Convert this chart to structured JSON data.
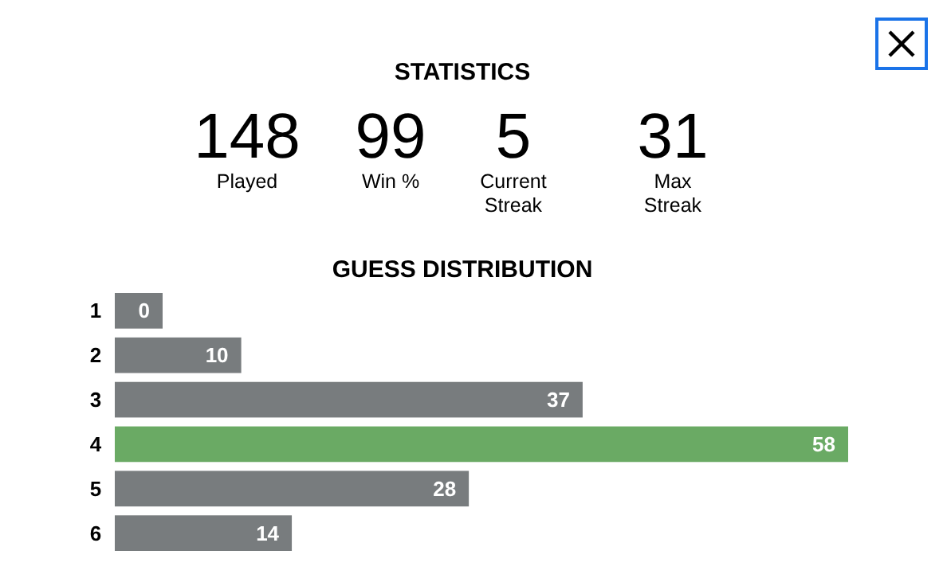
{
  "chart_data": [
    {
      "type": "other",
      "title": "STATISTICS",
      "categories": [
        "Played",
        "Win %",
        "Current Streak",
        "Max Streak"
      ],
      "values": [
        148,
        99,
        5,
        31
      ],
      "data_labels": true
    },
    {
      "type": "bar",
      "title": "GUESS DISTRIBUTION",
      "orientation": "horizontal",
      "categories": [
        "1",
        "2",
        "3",
        "4",
        "5",
        "6"
      ],
      "values": [
        0,
        10,
        37,
        58,
        28,
        14
      ],
      "colors": [
        "#787c7e",
        "#787c7e",
        "#787c7e",
        "#6aaa64",
        "#787c7e",
        "#787c7e"
      ],
      "data_labels": true
    }
  ]
}
